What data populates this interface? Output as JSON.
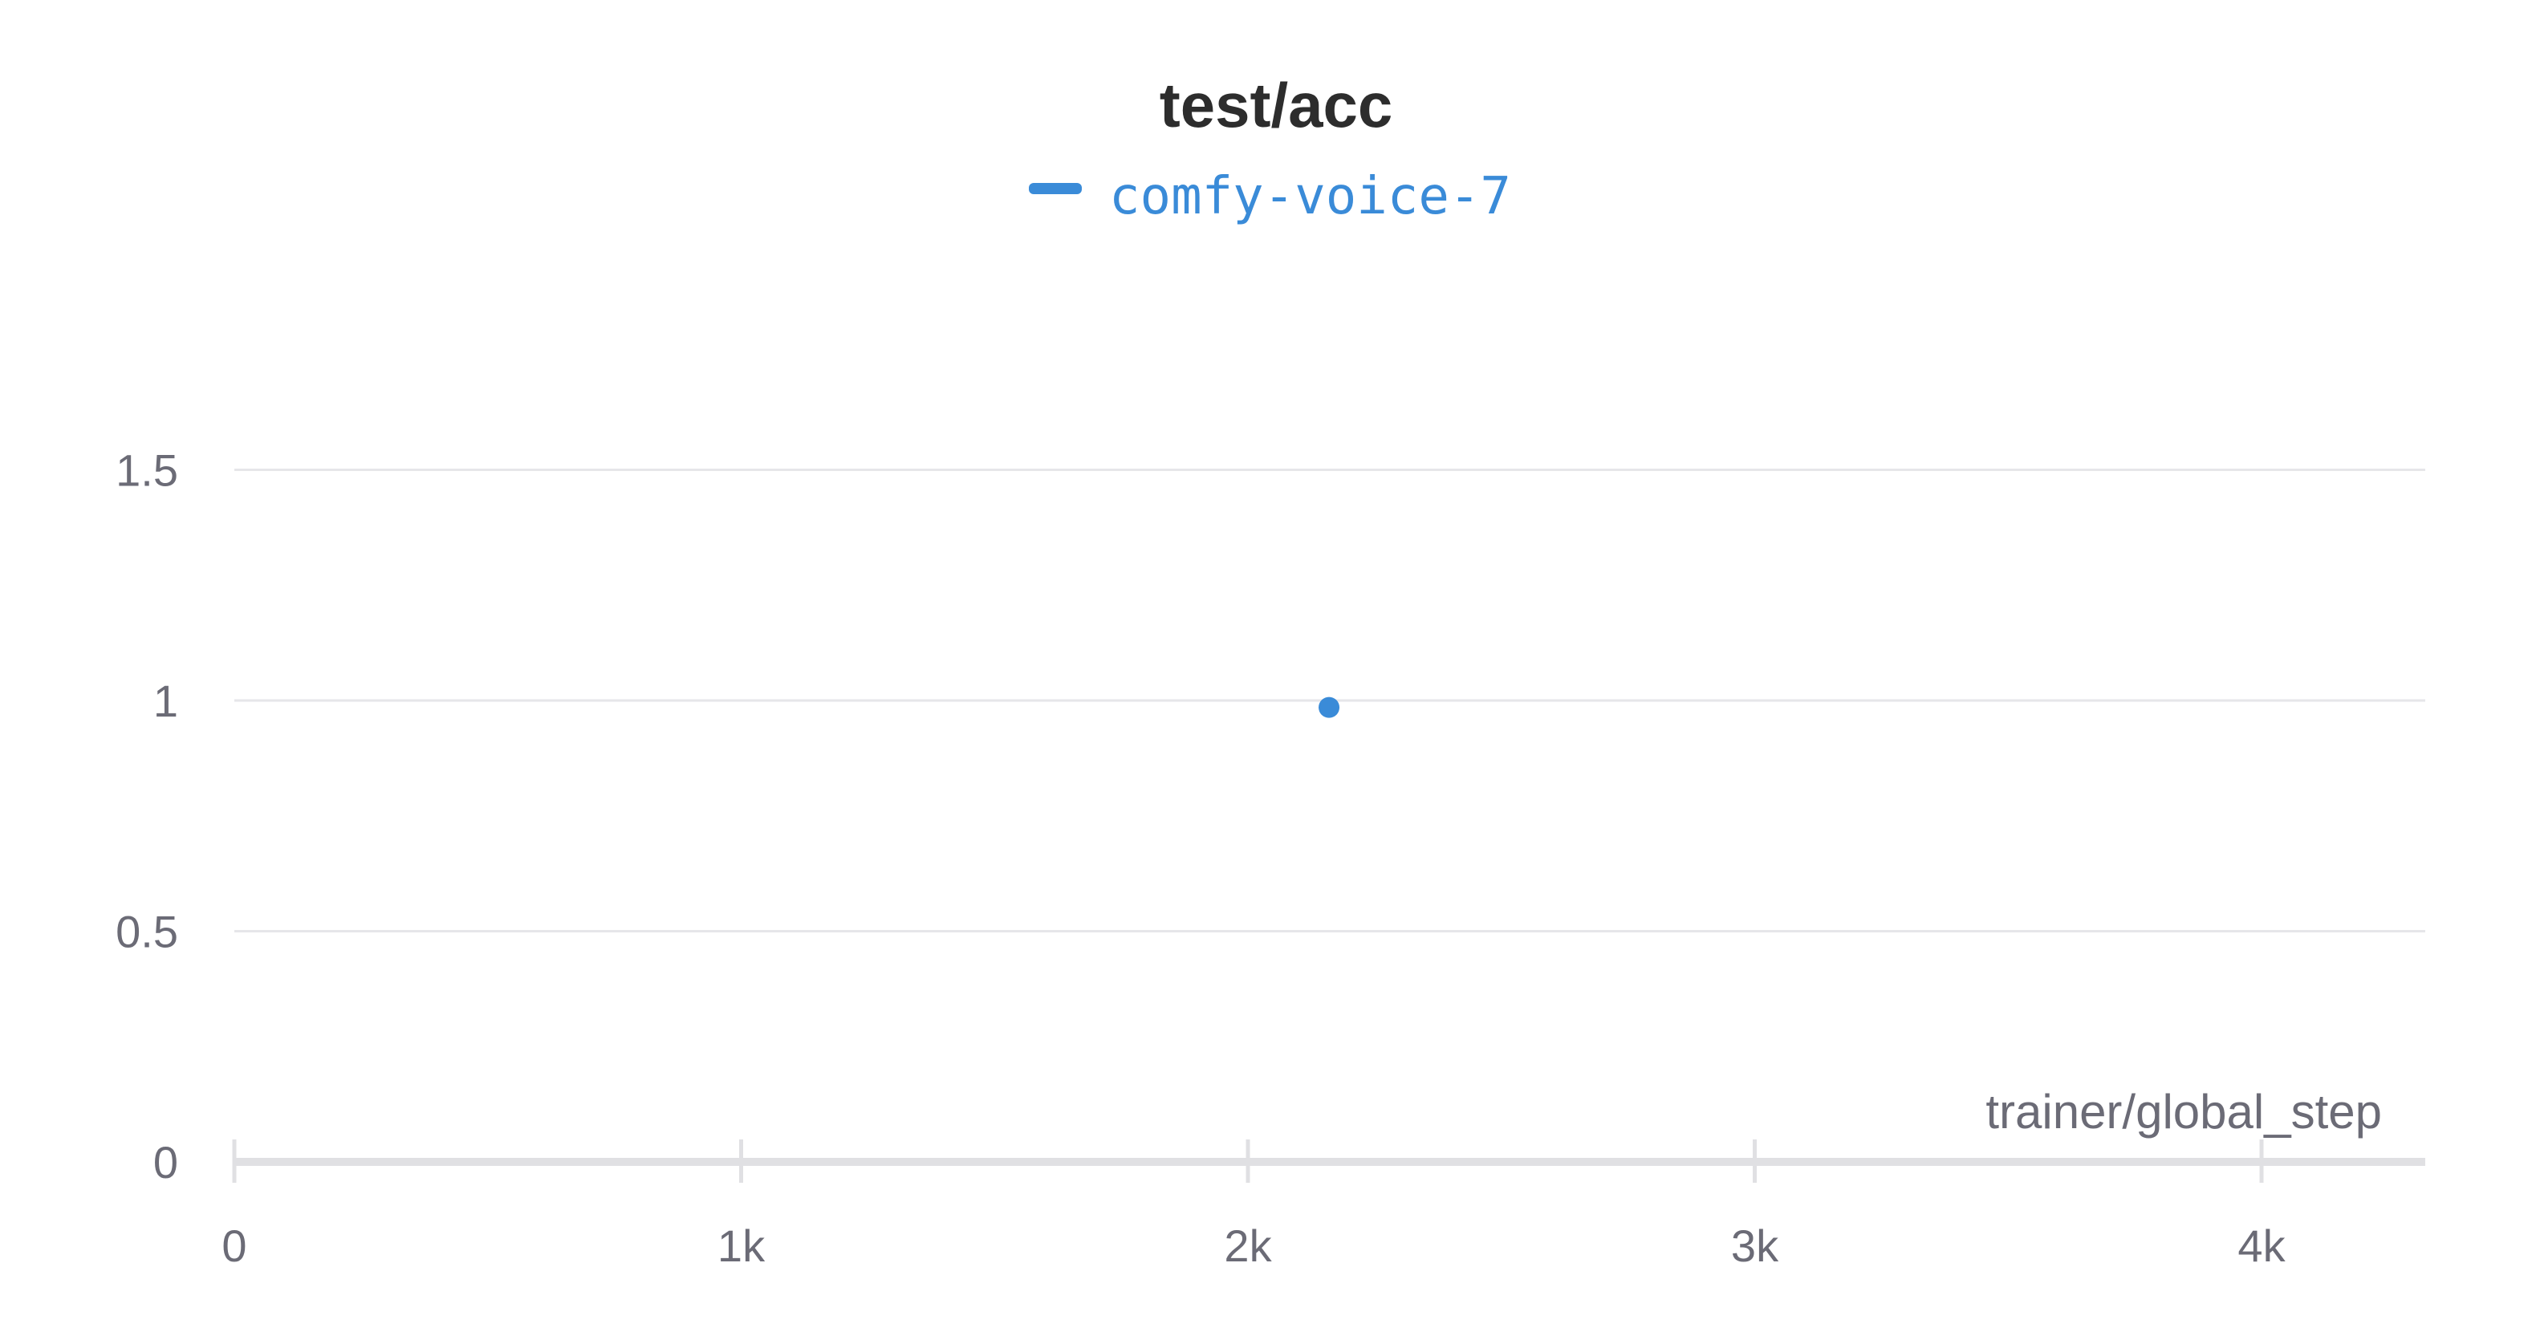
{
  "chart_data": {
    "type": "scatter",
    "title": "test/acc",
    "xlabel": "trainer/global_step",
    "ylabel": "",
    "xlim": [
      0,
      4300
    ],
    "ylim": [
      0,
      1.5
    ],
    "grid": true,
    "legend_position": "top-center",
    "x_ticks": [
      {
        "value": 0,
        "label": "0"
      },
      {
        "value": 1000,
        "label": "1k"
      },
      {
        "value": 2000,
        "label": "2k"
      },
      {
        "value": 3000,
        "label": "3k"
      },
      {
        "value": 4000,
        "label": "4k"
      }
    ],
    "y_ticks": [
      {
        "value": 0,
        "label": "0"
      },
      {
        "value": 0.5,
        "label": "0.5"
      },
      {
        "value": 1,
        "label": "1"
      },
      {
        "value": 1.5,
        "label": "1.5"
      }
    ],
    "series": [
      {
        "name": "comfy-voice-7",
        "color": "#3a8bd8",
        "points": [
          {
            "x": 2160,
            "y": 0.985
          }
        ]
      }
    ]
  }
}
